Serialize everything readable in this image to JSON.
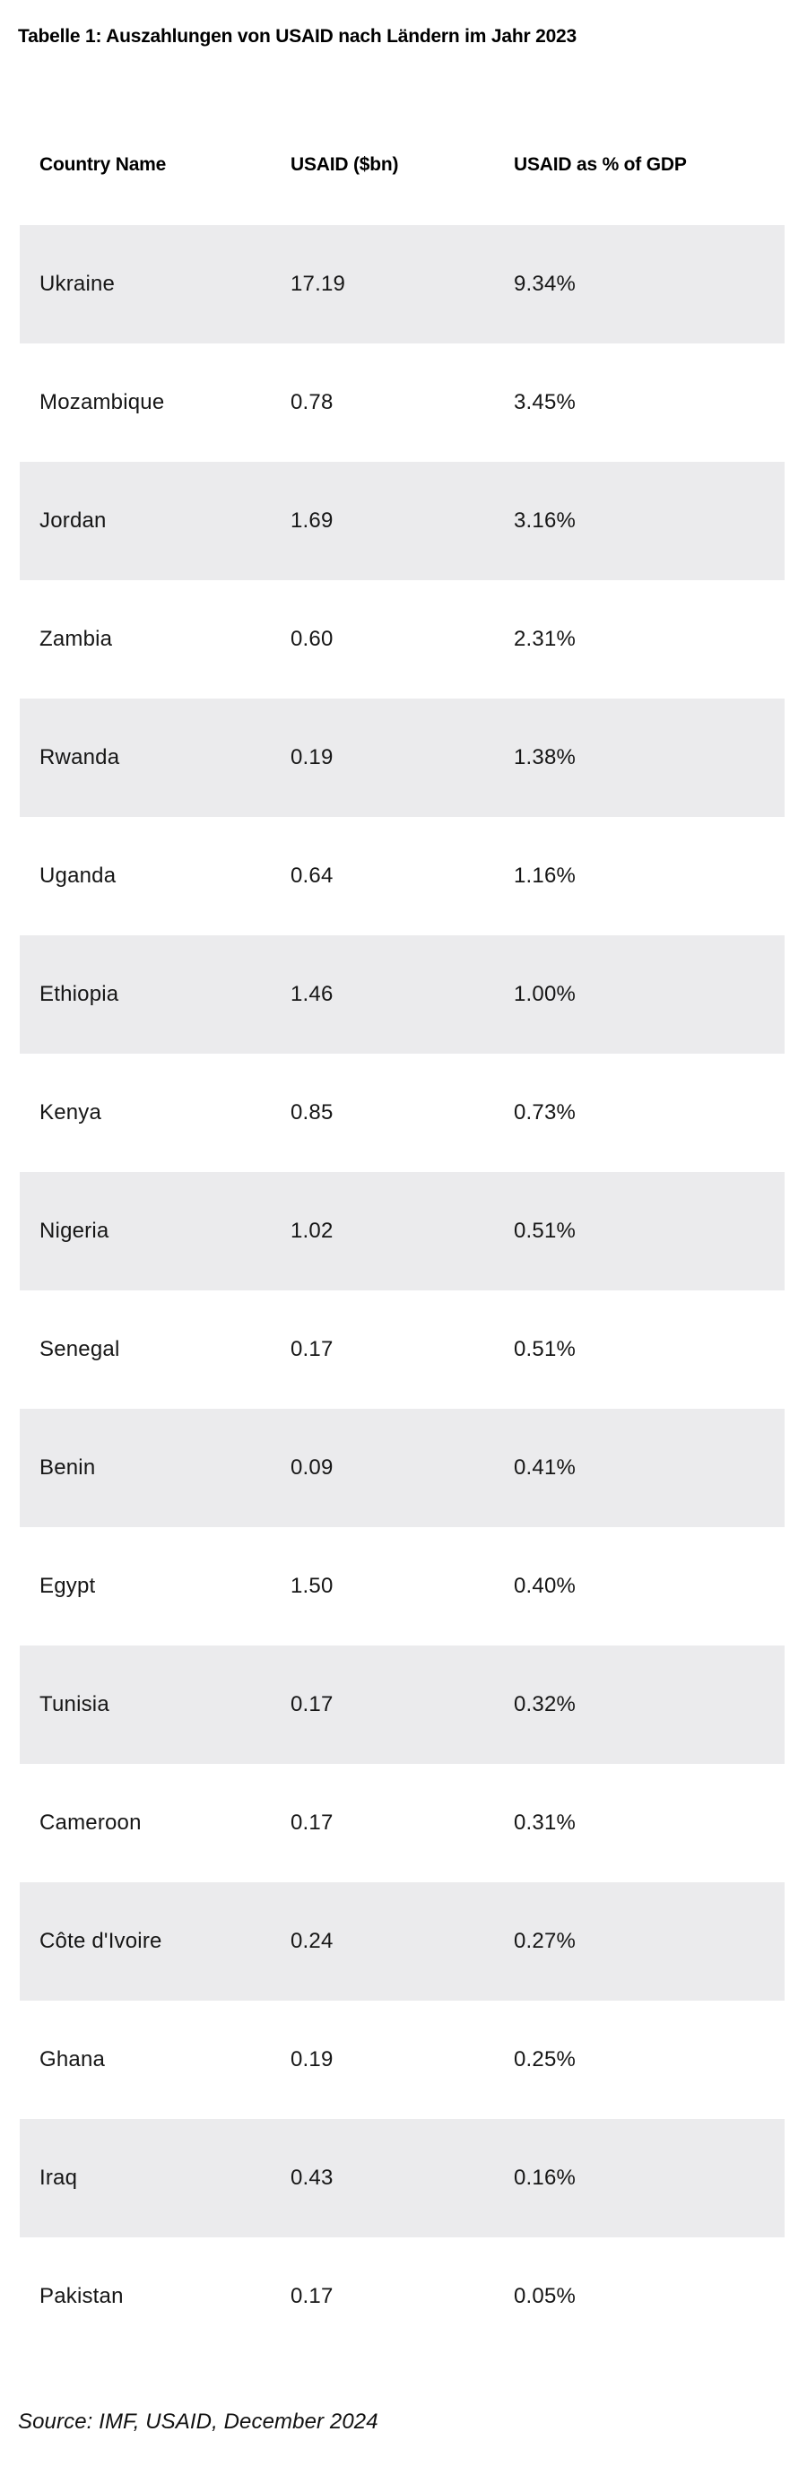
{
  "page": {
    "title": "Tabelle 1: Auszahlungen von USAID nach Ländern im Jahr 2023",
    "source": "Source: IMF, USAID, December 2024"
  },
  "colors": {
    "stripe": "#ebebed",
    "heading_text": "#000000",
    "body_text": "#161616"
  },
  "chart_data": {
    "type": "table",
    "title": "Tabelle 1: Auszahlungen von USAID nach Ländern im Jahr 2023",
    "columns": [
      "Country Name",
      "USAID ($bn)",
      "USAID as % of GDP"
    ],
    "rows": [
      [
        "Ukraine",
        "17.19",
        "9.34%"
      ],
      [
        "Mozambique",
        "0.78",
        "3.45%"
      ],
      [
        "Jordan",
        "1.69",
        "3.16%"
      ],
      [
        "Zambia",
        "0.60",
        "2.31%"
      ],
      [
        "Rwanda",
        "0.19",
        "1.38%"
      ],
      [
        "Uganda",
        "0.64",
        "1.16%"
      ],
      [
        "Ethiopia",
        "1.46",
        "1.00%"
      ],
      [
        "Kenya",
        "0.85",
        "0.73%"
      ],
      [
        "Nigeria",
        "1.02",
        "0.51%"
      ],
      [
        "Senegal",
        "0.17",
        "0.51%"
      ],
      [
        "Benin",
        "0.09",
        "0.41%"
      ],
      [
        "Egypt",
        "1.50",
        "0.40%"
      ],
      [
        "Tunisia",
        "0.17",
        "0.32%"
      ],
      [
        "Cameroon",
        "0.17",
        "0.31%"
      ],
      [
        "Côte d'Ivoire",
        "0.24",
        "0.27%"
      ],
      [
        "Ghana",
        "0.19",
        "0.25%"
      ],
      [
        "Iraq",
        "0.43",
        "0.16%"
      ],
      [
        "Pakistan",
        "0.17",
        "0.05%"
      ]
    ],
    "source": "Source: IMF, USAID, December 2024",
    "layout": {
      "striped_rows": "odd",
      "stripe_color": "#ebebed",
      "legend": "none",
      "grid": "off"
    }
  }
}
